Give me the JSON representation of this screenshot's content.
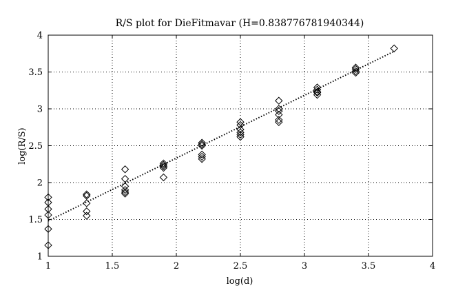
{
  "chart_data": {
    "type": "scatter",
    "title": "R/S plot for DieFitmavar (H=0.838776781940344)",
    "xlabel": "log(d)",
    "ylabel": "log(R/S)",
    "xlim": [
      1,
      4
    ],
    "ylim": [
      1,
      4
    ],
    "xticks": [
      1,
      1.5,
      2,
      2.5,
      3,
      3.5,
      4
    ],
    "yticks": [
      1,
      1.5,
      2,
      2.5,
      3,
      3.5,
      4
    ],
    "xtick_labels": [
      "1",
      "1.5",
      "2",
      "2.5",
      "3",
      "3.5",
      "4"
    ],
    "ytick_labels": [
      "1",
      "1.5",
      "2",
      "2.5",
      "3",
      "3.5",
      "4"
    ],
    "grid": true,
    "marker": "diamond",
    "points": [
      [
        1.0,
        1.8
      ],
      [
        1.0,
        1.73
      ],
      [
        1.0,
        1.64
      ],
      [
        1.0,
        1.56
      ],
      [
        1.0,
        1.37
      ],
      [
        1.0,
        1.15
      ],
      [
        1.3,
        1.84
      ],
      [
        1.3,
        1.82
      ],
      [
        1.3,
        1.72
      ],
      [
        1.3,
        1.61
      ],
      [
        1.3,
        1.55
      ],
      [
        1.6,
        2.18
      ],
      [
        1.6,
        2.05
      ],
      [
        1.6,
        1.95
      ],
      [
        1.6,
        1.9
      ],
      [
        1.6,
        1.87
      ],
      [
        1.6,
        1.85
      ],
      [
        1.9,
        2.26
      ],
      [
        1.9,
        2.24
      ],
      [
        1.9,
        2.22
      ],
      [
        1.9,
        2.2
      ],
      [
        1.9,
        2.07
      ],
      [
        2.2,
        2.54
      ],
      [
        2.2,
        2.52
      ],
      [
        2.2,
        2.5
      ],
      [
        2.2,
        2.38
      ],
      [
        2.2,
        2.35
      ],
      [
        2.2,
        2.32
      ],
      [
        2.5,
        2.82
      ],
      [
        2.5,
        2.78
      ],
      [
        2.5,
        2.72
      ],
      [
        2.5,
        2.68
      ],
      [
        2.5,
        2.65
      ],
      [
        2.5,
        2.62
      ],
      [
        2.8,
        3.11
      ],
      [
        2.8,
        3.0
      ],
      [
        2.8,
        2.97
      ],
      [
        2.8,
        2.92
      ],
      [
        2.8,
        2.85
      ],
      [
        2.8,
        2.82
      ],
      [
        3.1,
        3.29
      ],
      [
        3.1,
        3.26
      ],
      [
        3.1,
        3.23
      ],
      [
        3.1,
        3.22
      ],
      [
        3.1,
        3.19
      ],
      [
        3.4,
        3.56
      ],
      [
        3.4,
        3.54
      ],
      [
        3.4,
        3.51
      ],
      [
        3.4,
        3.49
      ],
      [
        3.7,
        3.82
      ]
    ],
    "fit": {
      "style": "dotted",
      "start": [
        1.0,
        1.48
      ],
      "end": [
        3.7,
        3.78
      ]
    }
  }
}
